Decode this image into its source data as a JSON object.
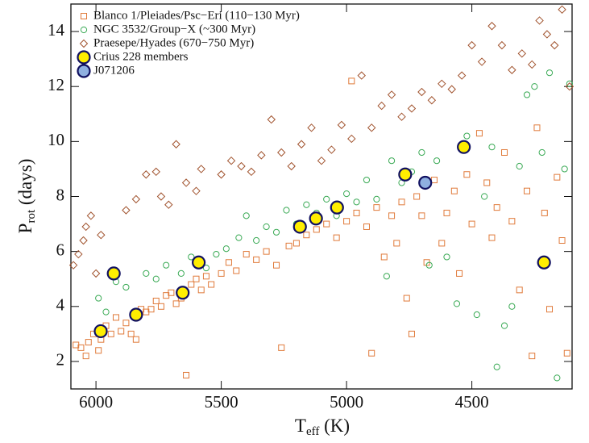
{
  "chart_data": {
    "type": "scatter",
    "x_label": [
      "T",
      "eff",
      " (K)"
    ],
    "y_label": [
      "P",
      "rot",
      " (days)"
    ],
    "xlim": [
      6100,
      4100
    ],
    "ylim": [
      1,
      15
    ],
    "xticks": [
      6000,
      5500,
      5000,
      4500
    ],
    "yticks": [
      2,
      4,
      6,
      8,
      10,
      12,
      14
    ],
    "x_reversed": true,
    "legend": "upper left",
    "series": [
      {
        "name": "Blanco 1/Pleiades/Psc−Eri (110−130 Myr)",
        "marker": "square",
        "color": "#e07a3a",
        "fill": "none",
        "x": [
          6080,
          6060,
          6040,
          6030,
          6010,
          5990,
          5980,
          5960,
          5940,
          5920,
          5900,
          5880,
          5860,
          5840,
          5820,
          5800,
          5780,
          5760,
          5740,
          5720,
          5700,
          5680,
          5660,
          5640,
          5620,
          5600,
          5580,
          5560,
          5540,
          5500,
          5470,
          5440,
          5400,
          5360,
          5320,
          5280,
          5260,
          5230,
          5200,
          5160,
          5120,
          5080,
          5040,
          5000,
          4980,
          4960,
          4920,
          4900,
          4880,
          4850,
          4820,
          4800,
          4780,
          4760,
          4740,
          4720,
          4700,
          4680,
          4650,
          4620,
          4600,
          4570,
          4550,
          4520,
          4500,
          4470,
          4440,
          4420,
          4400,
          4370,
          4340,
          4310,
          4280,
          4260,
          4240,
          4210,
          4190,
          4160,
          4140,
          4120
        ],
        "values": [
          2.6,
          2.5,
          2.2,
          2.7,
          3.0,
          2.4,
          2.8,
          3.3,
          3.0,
          3.6,
          3.1,
          3.4,
          3.0,
          2.8,
          3.9,
          3.8,
          3.9,
          4.2,
          4.0,
          4.4,
          4.5,
          4.1,
          4.3,
          1.5,
          4.8,
          5.0,
          4.6,
          5.1,
          4.8,
          5.2,
          5.6,
          5.3,
          5.9,
          5.7,
          6.0,
          5.5,
          2.5,
          6.2,
          6.3,
          6.6,
          6.8,
          7.0,
          6.5,
          7.1,
          12.2,
          7.4,
          6.9,
          2.3,
          7.6,
          5.8,
          7.3,
          6.3,
          7.8,
          4.3,
          3.0,
          8.0,
          7.3,
          5.6,
          8.6,
          6.3,
          7.4,
          8.2,
          5.2,
          8.8,
          7.0,
          10.3,
          8.5,
          6.5,
          7.6,
          9.6,
          7.1,
          4.6,
          8.2,
          2.2,
          10.5,
          7.4,
          3.9,
          8.7,
          6.4,
          2.3
        ]
      },
      {
        "name": "NGC 3532/Group−X (~300 Myr)",
        "marker": "circle",
        "color": "#3aaa55",
        "fill": "none",
        "x": [
          5990,
          5960,
          5920,
          5880,
          5800,
          5760,
          5720,
          5660,
          5620,
          5560,
          5520,
          5480,
          5430,
          5400,
          5360,
          5320,
          5280,
          5240,
          5200,
          5160,
          5120,
          5080,
          5040,
          5000,
          4960,
          4920,
          4880,
          4840,
          4820,
          4780,
          4740,
          4700,
          4670,
          4640,
          4600,
          4560,
          4520,
          4480,
          4450,
          4420,
          4400,
          4370,
          4340,
          4310,
          4280,
          4250,
          4220,
          4190,
          4160,
          4130,
          4110
        ],
        "values": [
          4.3,
          3.8,
          4.9,
          4.7,
          5.2,
          5.0,
          5.5,
          5.2,
          5.8,
          5.4,
          5.9,
          6.1,
          6.5,
          7.3,
          6.4,
          6.9,
          6.7,
          7.5,
          7.0,
          7.7,
          7.4,
          7.9,
          7.3,
          8.1,
          7.8,
          8.6,
          7.9,
          5.1,
          9.3,
          8.5,
          8.9,
          9.6,
          5.5,
          9.3,
          5.8,
          4.1,
          10.2,
          3.7,
          8.0,
          9.8,
          1.8,
          3.3,
          4.0,
          9.1,
          11.7,
          12.0,
          9.6,
          12.5,
          1.4,
          9.0,
          12.1
        ]
      },
      {
        "name": "Praesepe/Hyades (670−750 Myr)",
        "marker": "diamond",
        "color": "#a0522d",
        "fill": "none",
        "x": [
          6090,
          6070,
          6050,
          6040,
          6020,
          6000,
          5980,
          5880,
          5840,
          5800,
          5760,
          5740,
          5710,
          5680,
          5640,
          5600,
          5580,
          5500,
          5460,
          5420,
          5380,
          5340,
          5300,
          5260,
          5220,
          5180,
          5140,
          5100,
          5060,
          5020,
          4980,
          4940,
          4900,
          4860,
          4820,
          4780,
          4740,
          4700,
          4660,
          4620,
          4580,
          4540,
          4500,
          4460,
          4420,
          4380,
          4340,
          4300,
          4260,
          4230,
          4200,
          4170,
          4140,
          4110
        ],
        "values": [
          5.5,
          5.9,
          6.4,
          6.9,
          7.3,
          5.2,
          6.6,
          7.5,
          7.9,
          8.8,
          8.9,
          8.0,
          7.7,
          9.9,
          8.5,
          8.2,
          9.0,
          8.8,
          9.3,
          9.1,
          8.9,
          9.5,
          10.8,
          9.6,
          9.1,
          9.9,
          10.5,
          9.3,
          9.7,
          10.6,
          10.1,
          12.4,
          10.5,
          11.3,
          11.7,
          10.9,
          11.2,
          11.8,
          11.5,
          12.1,
          11.9,
          12.4,
          13.5,
          12.9,
          14.2,
          13.5,
          12.6,
          13.2,
          12.8,
          14.4,
          13.9,
          13.5,
          14.8,
          12.0
        ]
      },
      {
        "name": "Crius 228 members",
        "marker": "big-circle",
        "color": "#101060",
        "fill": "#ffee00",
        "x": [
          5981,
          5840,
          5654,
          5590,
          5929,
          5186,
          5122,
          5038,
          4766,
          4532,
          4212
        ],
        "values": [
          3.1,
          3.7,
          4.5,
          5.6,
          5.2,
          6.9,
          7.2,
          7.6,
          8.8,
          9.8,
          5.6
        ]
      },
      {
        "name": "J071206",
        "marker": "big-circle",
        "color": "#101060",
        "fill": "#8fb0e0",
        "x": [
          4686
        ],
        "values": [
          8.5
        ]
      }
    ]
  }
}
